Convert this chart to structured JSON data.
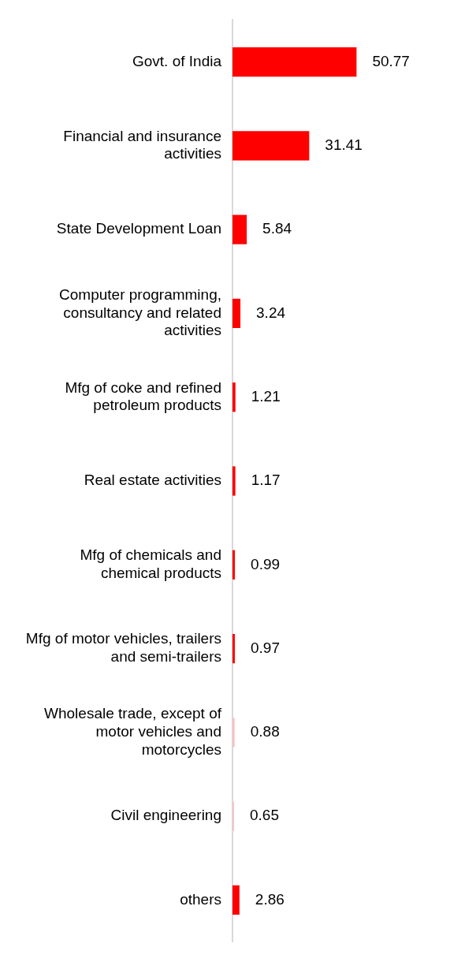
{
  "chart_data": {
    "type": "bar",
    "orientation": "horizontal",
    "data_labels": true,
    "legend": false,
    "categories": [
      "Govt. of India",
      "Financial and insurance activities",
      "State Development Loan",
      "Computer programming, consultancy and related activities",
      "Mfg of coke and refined petroleum products",
      "Real estate activities",
      "Mfg of chemicals and chemical products",
      "Mfg of motor vehicles, trailers and semi-trailers",
      "Wholesale trade, except of motor vehicles and motorcycles",
      "Civil engineering",
      "others"
    ],
    "values": [
      50.77,
      31.41,
      5.84,
      3.24,
      1.21,
      1.17,
      0.99,
      0.97,
      0.88,
      0.65,
      2.86
    ],
    "colors": [
      "#ff0000",
      "#ff0000",
      "#ff0000",
      "#ff0000",
      "#ff0000",
      "#ff0000",
      "#ff0000",
      "#ff0000",
      "#f6c4c4",
      "#f6c4c4",
      "#ff0000"
    ]
  }
}
